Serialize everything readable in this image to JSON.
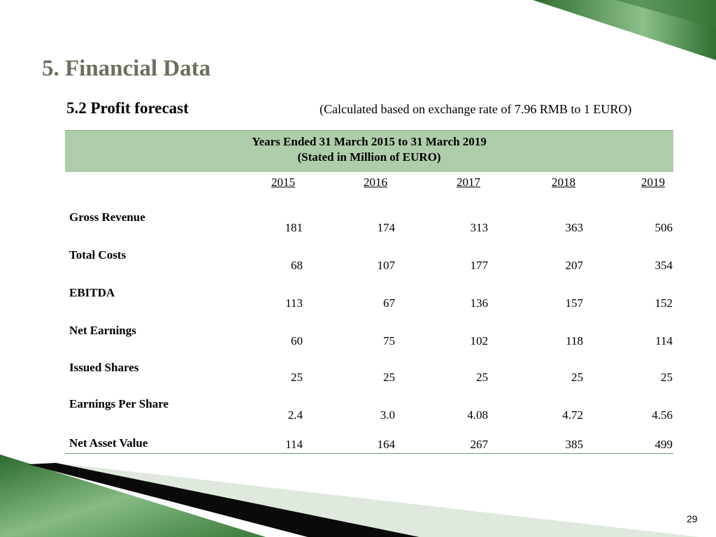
{
  "slide": {
    "title": "5. Financial Data",
    "subtitle": "5.2 Profit forecast",
    "rate_note": "(Calculated based on exchange rate of 7.96 RMB to 1 EURO)",
    "page_number": "29"
  },
  "table": {
    "header_line1": "Years Ended 31 March 2015 to 31 March 2019",
    "header_line2": "(Stated in Million of EURO)",
    "years": [
      "2015",
      "2016",
      "2017",
      "2018",
      "2019"
    ],
    "rows": [
      {
        "label": "Gross Revenue",
        "values": [
          "181",
          "174",
          "313",
          "363",
          "506"
        ]
      },
      {
        "label": "Total Costs",
        "values": [
          "68",
          "107",
          "177",
          "207",
          "354"
        ]
      },
      {
        "label": "EBITDA",
        "values": [
          "113",
          "67",
          "136",
          "157",
          "152"
        ]
      },
      {
        "label": "Net Earnings",
        "values": [
          "60",
          "75",
          "102",
          "118",
          "114"
        ]
      },
      {
        "label": "Issued Shares",
        "values": [
          "25",
          "25",
          "25",
          "25",
          "25"
        ]
      },
      {
        "label": "Earnings Per Share",
        "values": [
          "2.4",
          "3.0",
          "4.08",
          "4.72",
          "4.56"
        ]
      },
      {
        "label": "Net Asset Value",
        "values": [
          "114",
          "164",
          "267",
          "385",
          "499"
        ]
      }
    ]
  },
  "colors": {
    "accent_green": "#3f7a3f",
    "header_fill": "#aecdaa",
    "title_color": "#6b6f5e"
  }
}
